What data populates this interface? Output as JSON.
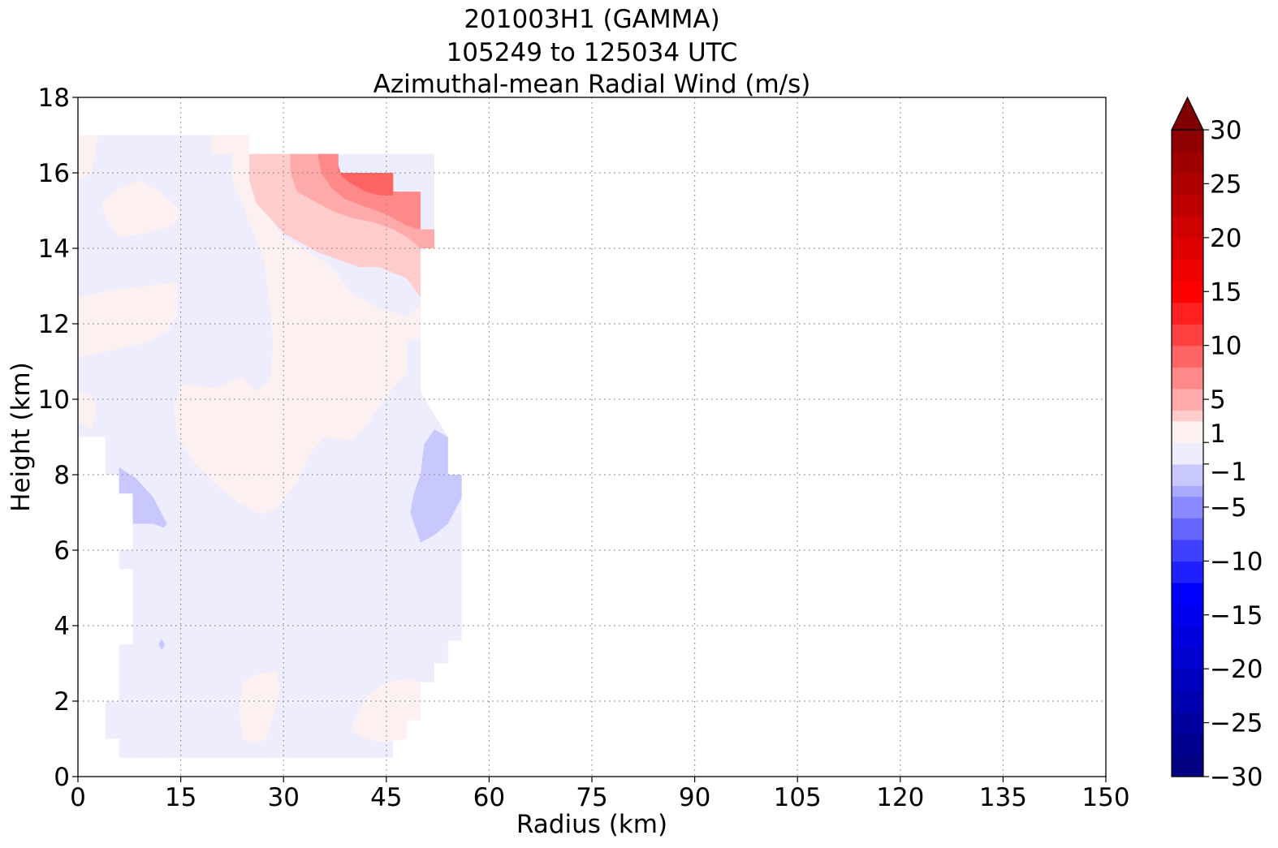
{
  "chart_data": {
    "type": "heatmap",
    "title_lines": [
      "201003H1 (GAMMA)",
      "105249 to 125034 UTC",
      "Azimuthal-mean Radial Wind (m/s)"
    ],
    "xlabel": "Radius (km)",
    "ylabel": "Height (km)",
    "xlim": [
      0,
      150
    ],
    "ylim": [
      0,
      18
    ],
    "xticks": [
      0,
      15,
      30,
      45,
      60,
      75,
      90,
      105,
      120,
      135,
      150
    ],
    "yticks": [
      0,
      2,
      4,
      6,
      8,
      10,
      12,
      14,
      16,
      18
    ],
    "grid": true,
    "colorbar": {
      "location": "right",
      "min": -30,
      "max": 30,
      "extend": "max",
      "tick_values": [
        30,
        25,
        20,
        15,
        10,
        5,
        1,
        -1,
        -5,
        -10,
        -15,
        -20,
        -25,
        -30
      ],
      "tick_labels": [
        "30",
        "25",
        "20",
        "15",
        "10",
        "5",
        "1",
        "−1",
        "−5",
        "−10",
        "−15",
        "−20",
        "−25",
        "−30"
      ],
      "bins": [
        {
          "lo": -30,
          "hi": -28,
          "color": "#000080"
        },
        {
          "lo": -28,
          "hi": -26,
          "color": "#00008f"
        },
        {
          "lo": -26,
          "hi": -24,
          "color": "#00009f"
        },
        {
          "lo": -24,
          "hi": -22,
          "color": "#0000af"
        },
        {
          "lo": -22,
          "hi": -20,
          "color": "#0000bf"
        },
        {
          "lo": -20,
          "hi": -18,
          "color": "#0000cf"
        },
        {
          "lo": -18,
          "hi": -16,
          "color": "#0000df"
        },
        {
          "lo": -16,
          "hi": -14,
          "color": "#0000ef"
        },
        {
          "lo": -14,
          "hi": -12,
          "color": "#0000ff"
        },
        {
          "lo": -12,
          "hi": -10,
          "color": "#2020ff"
        },
        {
          "lo": -10,
          "hi": -8,
          "color": "#4040ff"
        },
        {
          "lo": -8,
          "hi": -6,
          "color": "#6464ff"
        },
        {
          "lo": -6,
          "hi": -4,
          "color": "#8888ff"
        },
        {
          "lo": -4,
          "hi": -3,
          "color": "#a9a9ff"
        },
        {
          "lo": -3,
          "hi": -1,
          "color": "#c8c8ff"
        },
        {
          "lo": -1,
          "hi": 1,
          "color": "#ededfd"
        },
        {
          "lo": 1,
          "hi": 3,
          "color": "#fdf0f0"
        },
        {
          "lo": 3,
          "hi": 4,
          "color": "#ffcccc"
        },
        {
          "lo": 4,
          "hi": 6,
          "color": "#ffaaaa"
        },
        {
          "lo": 6,
          "hi": 8,
          "color": "#ff8888"
        },
        {
          "lo": 8,
          "hi": 10,
          "color": "#ff6464"
        },
        {
          "lo": 10,
          "hi": 12,
          "color": "#ff4040"
        },
        {
          "lo": 12,
          "hi": 14,
          "color": "#ff2020"
        },
        {
          "lo": 14,
          "hi": 16,
          "color": "#ff0000"
        },
        {
          "lo": 16,
          "hi": 18,
          "color": "#ef0000"
        },
        {
          "lo": 18,
          "hi": 20,
          "color": "#df0000"
        },
        {
          "lo": 20,
          "hi": 22,
          "color": "#cf0000"
        },
        {
          "lo": 22,
          "hi": 24,
          "color": "#bf0000"
        },
        {
          "lo": 24,
          "hi": 26,
          "color": "#af0000"
        },
        {
          "lo": 26,
          "hi": 28,
          "color": "#9f0000"
        },
        {
          "lo": 28,
          "hi": 30,
          "color": "#8f0000"
        }
      ],
      "extend_color": "#800000"
    },
    "regions": [
      {
        "value": 0,
        "color": "#ededfd",
        "points": [
          [
            0,
            17
          ],
          [
            19.5,
            17
          ],
          [
            19.5,
            16.5
          ],
          [
            52,
            16.5
          ],
          [
            52,
            14.2
          ],
          [
            50,
            13.9
          ],
          [
            50,
            10.2
          ],
          [
            52,
            9.6
          ],
          [
            54,
            9
          ],
          [
            54,
            8
          ],
          [
            56,
            8
          ],
          [
            56,
            3.6
          ],
          [
            54,
            3.6
          ],
          [
            54,
            3
          ],
          [
            52,
            3
          ],
          [
            52,
            2.5
          ],
          [
            50,
            2.5
          ],
          [
            50,
            1.5
          ],
          [
            48,
            1.5
          ],
          [
            48,
            1
          ],
          [
            46,
            1
          ],
          [
            46,
            0.5
          ],
          [
            6,
            0.5
          ],
          [
            6,
            1
          ],
          [
            4,
            1
          ],
          [
            4,
            2
          ],
          [
            6,
            2
          ],
          [
            6,
            3.5
          ],
          [
            8,
            3.5
          ],
          [
            8,
            5.5
          ],
          [
            6,
            5.5
          ],
          [
            6,
            6
          ],
          [
            8,
            6
          ],
          [
            8,
            8
          ],
          [
            4,
            8
          ],
          [
            4,
            9
          ],
          [
            0,
            9
          ]
        ]
      },
      {
        "value": 1.5,
        "color": "#fdf0f0",
        "points": [
          [
            0,
            17
          ],
          [
            3,
            17
          ],
          [
            2.5,
            16.5
          ],
          [
            2,
            16
          ],
          [
            0,
            15.8
          ]
        ]
      },
      {
        "value": 1.5,
        "color": "#fdf0f0",
        "points": [
          [
            3.5,
            15.2
          ],
          [
            6,
            15.6
          ],
          [
            9,
            15.8
          ],
          [
            12,
            15.5
          ],
          [
            15,
            15
          ],
          [
            14,
            14.6
          ],
          [
            10,
            14.4
          ],
          [
            6,
            14.3
          ],
          [
            4,
            14.8
          ]
        ]
      },
      {
        "value": 1.5,
        "color": "#fdf0f0",
        "points": [
          [
            0,
            12.7
          ],
          [
            5,
            12.9
          ],
          [
            10,
            13
          ],
          [
            14.5,
            13.1
          ],
          [
            14.5,
            12.2
          ],
          [
            13,
            11.8
          ],
          [
            10,
            11.5
          ],
          [
            5,
            11.3
          ],
          [
            0,
            11.1
          ]
        ]
      },
      {
        "value": 1.5,
        "color": "#fdf0f0",
        "points": [
          [
            0,
            10.2
          ],
          [
            2,
            10.1
          ],
          [
            2.8,
            9.7
          ],
          [
            2,
            9.2
          ],
          [
            0,
            9.4
          ]
        ]
      },
      {
        "value": 1.5,
        "color": "#fdf0f0",
        "points": [
          [
            19.5,
            17
          ],
          [
            19.5,
            16.5
          ],
          [
            22.5,
            16.5
          ],
          [
            22.5,
            15.8
          ],
          [
            24,
            15.2
          ],
          [
            25.5,
            14.4
          ],
          [
            27,
            13.8
          ],
          [
            28,
            12.5
          ],
          [
            28.5,
            11.5
          ],
          [
            28,
            10.5
          ],
          [
            26,
            10.2
          ],
          [
            24,
            10.6
          ],
          [
            20,
            10.3
          ],
          [
            15,
            10.4
          ],
          [
            14,
            9.8
          ],
          [
            14.5,
            9
          ],
          [
            17,
            8.3
          ],
          [
            21,
            7.6
          ],
          [
            24,
            7.2
          ],
          [
            26,
            7
          ],
          [
            27,
            6.95
          ],
          [
            29,
            7.1
          ],
          [
            32,
            7.8
          ],
          [
            34,
            8.6
          ],
          [
            36,
            9
          ],
          [
            40,
            8.9
          ],
          [
            42,
            9.3
          ],
          [
            44,
            9.8
          ],
          [
            46,
            10.3
          ],
          [
            48,
            10.7
          ],
          [
            48,
            11.6
          ],
          [
            50,
            11.6
          ],
          [
            50,
            12.5
          ],
          [
            48,
            12.2
          ],
          [
            44,
            12.4
          ],
          [
            40,
            12.8
          ],
          [
            37,
            13.5
          ],
          [
            33,
            14
          ],
          [
            30,
            14.3
          ],
          [
            28,
            14.8
          ],
          [
            27,
            15.3
          ],
          [
            25.5,
            15.8
          ],
          [
            25,
            16.5
          ],
          [
            25,
            17
          ]
        ]
      },
      {
        "value": 1.5,
        "color": "#fdf0f0",
        "points": [
          [
            24,
            2.5
          ],
          [
            26,
            2.7
          ],
          [
            29,
            2.8
          ],
          [
            29.5,
            2.3
          ],
          [
            28.5,
            1.6
          ],
          [
            27.5,
            1
          ],
          [
            26,
            0.9
          ],
          [
            24,
            1
          ],
          [
            23.5,
            1.8
          ]
        ]
      },
      {
        "value": 1.5,
        "color": "#fdf0f0",
        "points": [
          [
            40,
            1.4
          ],
          [
            42,
            2.1
          ],
          [
            45,
            2.5
          ],
          [
            48,
            2.6
          ],
          [
            50,
            2.5
          ],
          [
            50,
            1.5
          ],
          [
            48,
            1.5
          ],
          [
            48,
            1
          ],
          [
            45,
            0.9
          ],
          [
            42,
            1
          ],
          [
            40,
            1.2
          ]
        ]
      },
      {
        "value": 3.5,
        "color": "#ffcccc",
        "points": [
          [
            25,
            16.5
          ],
          [
            38,
            16.5
          ],
          [
            38,
            16
          ],
          [
            46,
            16
          ],
          [
            46,
            15.5
          ],
          [
            50,
            15.5
          ],
          [
            50,
            14.5
          ],
          [
            52,
            14.5
          ],
          [
            52,
            14
          ],
          [
            50,
            14
          ],
          [
            50,
            12.7
          ],
          [
            48,
            13.2
          ],
          [
            44,
            13.5
          ],
          [
            41,
            13.5
          ],
          [
            38,
            13.7
          ],
          [
            35,
            13.9
          ],
          [
            32,
            14.2
          ],
          [
            30,
            14.4
          ],
          [
            28,
            14.8
          ],
          [
            26,
            15.2
          ],
          [
            25,
            15.8
          ]
        ]
      },
      {
        "value": 5,
        "color": "#ffaaaa",
        "points": [
          [
            31,
            16.5
          ],
          [
            38,
            16.5
          ],
          [
            38,
            16
          ],
          [
            46,
            16
          ],
          [
            46,
            15.5
          ],
          [
            50,
            15.5
          ],
          [
            50,
            14.5
          ],
          [
            52,
            14.5
          ],
          [
            52,
            14
          ],
          [
            50,
            14
          ],
          [
            48,
            14.3
          ],
          [
            46,
            14.5
          ],
          [
            43,
            14.7
          ],
          [
            40,
            14.8
          ],
          [
            37,
            15
          ],
          [
            35,
            15.2
          ],
          [
            32,
            15.5
          ],
          [
            31,
            16
          ]
        ]
      },
      {
        "value": 7,
        "color": "#ff8888",
        "points": [
          [
            35,
            16.5
          ],
          [
            38,
            16.5
          ],
          [
            38,
            16
          ],
          [
            46,
            16
          ],
          [
            46,
            15.5
          ],
          [
            50,
            15.5
          ],
          [
            50,
            14.5
          ],
          [
            48,
            14.6
          ],
          [
            45,
            14.9
          ],
          [
            42,
            15.1
          ],
          [
            39,
            15.3
          ],
          [
            37,
            15.6
          ],
          [
            35.5,
            16
          ]
        ]
      },
      {
        "value": 9,
        "color": "#ff6464",
        "points": [
          [
            38,
            16.2
          ],
          [
            38,
            16
          ],
          [
            46,
            16
          ],
          [
            46,
            15.4
          ],
          [
            44,
            15.4
          ],
          [
            42,
            15.5
          ],
          [
            40,
            15.7
          ],
          [
            38.5,
            15.9
          ]
        ]
      },
      {
        "value": -2,
        "color": "#c8c8ff",
        "points": [
          [
            6,
            8.2
          ],
          [
            8.5,
            7.9
          ],
          [
            11,
            7.4
          ],
          [
            13,
            6.7
          ],
          [
            12.5,
            6.6
          ],
          [
            11,
            6.7
          ],
          [
            8,
            6.7
          ],
          [
            8,
            7.5
          ],
          [
            6,
            7.5
          ]
        ]
      },
      {
        "value": -2,
        "color": "#c8c8ff",
        "points": [
          [
            52,
            9.2
          ],
          [
            54,
            9
          ],
          [
            54,
            8
          ],
          [
            56,
            8
          ],
          [
            56,
            7.4
          ],
          [
            54,
            6.7
          ],
          [
            52,
            6.4
          ],
          [
            50,
            6.2
          ],
          [
            48.5,
            7
          ],
          [
            49,
            7.5
          ],
          [
            50,
            8
          ],
          [
            50.5,
            8.8
          ]
        ]
      },
      {
        "value": -2,
        "color": "#c8c8ff",
        "points": [
          [
            11.8,
            3.5
          ],
          [
            12.2,
            3.65
          ],
          [
            12.7,
            3.5
          ],
          [
            12.2,
            3.35
          ]
        ]
      }
    ]
  }
}
